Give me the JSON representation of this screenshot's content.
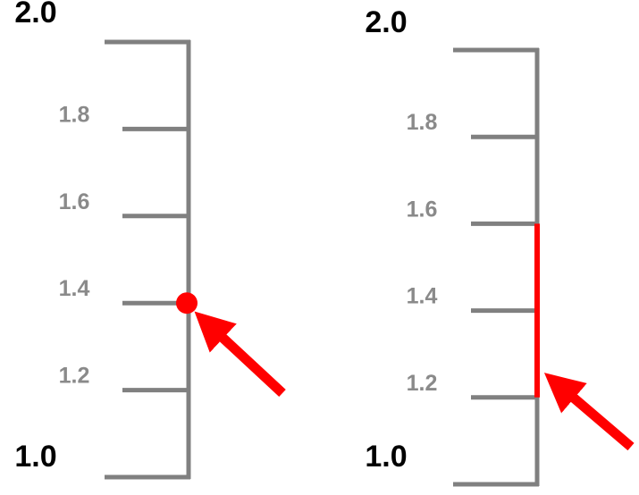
{
  "colors": {
    "scale": "#808080",
    "marker": "#ff0000",
    "major_label": "#000000",
    "minor_label": "#8a8a8a"
  },
  "scales": [
    {
      "id": "point-scale",
      "min": 1.0,
      "max": 2.0,
      "major_ticks": [
        {
          "value": 1.0,
          "label": "1.0"
        },
        {
          "value": 2.0,
          "label": "2.0"
        }
      ],
      "minor_ticks": [
        {
          "value": 1.2,
          "label": "1.2"
        },
        {
          "value": 1.4,
          "label": "1.4"
        },
        {
          "value": 1.6,
          "label": "1.6"
        },
        {
          "value": 1.8,
          "label": "1.8"
        }
      ],
      "marker": {
        "type": "point",
        "value": 1.4
      },
      "arrow_icon": "arrow-pointing-up-left-icon"
    },
    {
      "id": "interval-scale",
      "min": 1.0,
      "max": 2.0,
      "major_ticks": [
        {
          "value": 1.0,
          "label": "1.0"
        },
        {
          "value": 2.0,
          "label": "2.0"
        }
      ],
      "minor_ticks": [
        {
          "value": 1.2,
          "label": "1.2"
        },
        {
          "value": 1.4,
          "label": "1.4"
        },
        {
          "value": 1.6,
          "label": "1.6"
        },
        {
          "value": 1.8,
          "label": "1.8"
        }
      ],
      "marker": {
        "type": "interval",
        "from": 1.2,
        "to": 1.6
      },
      "arrow_icon": "arrow-pointing-up-left-icon"
    }
  ]
}
